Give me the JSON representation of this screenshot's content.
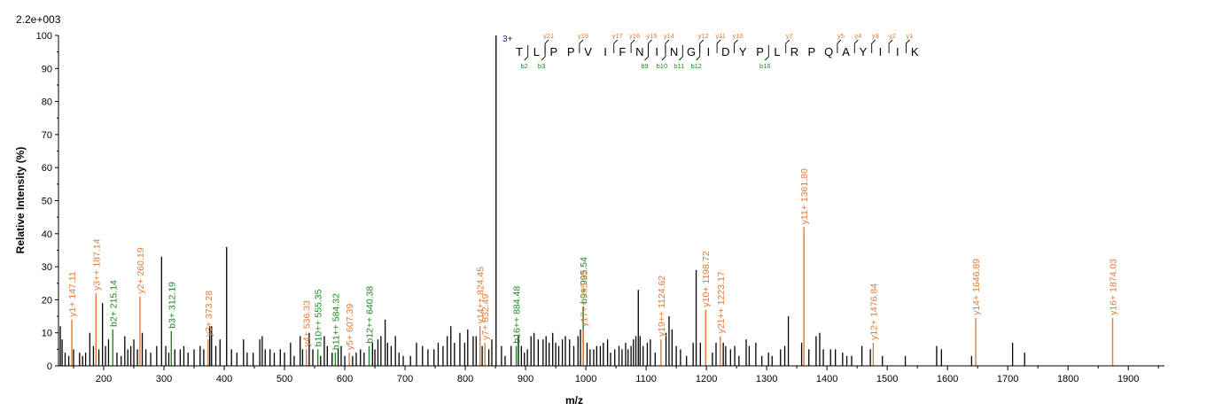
{
  "chart_data": {
    "type": "bar",
    "scale_label": "2.2e+003",
    "xlabel": "m/z",
    "ylabel": "Relative   Intensity (%)",
    "xlim": [
      125,
      1960
    ],
    "ylim": [
      0,
      100
    ],
    "x_ticks": [
      200,
      300,
      400,
      500,
      600,
      700,
      800,
      900,
      1000,
      1100,
      1200,
      1300,
      1400,
      1500,
      1600,
      1700,
      1800,
      1900
    ],
    "y_ticks": [
      0,
      10,
      20,
      30,
      40,
      50,
      60,
      70,
      80,
      90,
      100
    ],
    "charge_label": "3+",
    "colors": {
      "y_ion": "#e07a3a",
      "b_ion": "#1e8a1e",
      "peak": "#000000",
      "charge": "#1a1aa0"
    },
    "sequence": [
      "T",
      "L",
      "P",
      "P",
      "V",
      "I",
      "F",
      "N",
      "I",
      "N",
      "G",
      "I",
      "D",
      "Y",
      "P",
      "L",
      "R",
      "P",
      "Q",
      "A",
      "Y",
      "I",
      "I",
      "K"
    ],
    "seq_y_marks": [
      {
        "after": 2,
        "label": "y21"
      },
      {
        "after": 4,
        "label": "y19"
      },
      {
        "after": 6,
        "label": "y17"
      },
      {
        "after": 7,
        "label": "y16"
      },
      {
        "after": 8,
        "label": "y15"
      },
      {
        "after": 9,
        "label": "y14"
      },
      {
        "after": 11,
        "label": "y12"
      },
      {
        "after": 12,
        "label": "y11"
      },
      {
        "after": 13,
        "label": "y10"
      },
      {
        "after": 16,
        "label": "y7"
      },
      {
        "after": 19,
        "label": "y5"
      },
      {
        "after": 20,
        "label": "y4"
      },
      {
        "after": 21,
        "label": "y3"
      },
      {
        "after": 22,
        "label": "y2"
      },
      {
        "after": 23,
        "label": "y1"
      }
    ],
    "seq_b_marks": [
      {
        "after": 1,
        "label": "b2"
      },
      {
        "after": 2,
        "label": "b3"
      },
      {
        "after": 8,
        "label": "b9"
      },
      {
        "after": 9,
        "label": "b10"
      },
      {
        "after": 10,
        "label": "b11"
      },
      {
        "after": 11,
        "label": "b12"
      },
      {
        "after": 15,
        "label": "b16"
      }
    ],
    "annotated_peaks": [
      {
        "mz": 147.11,
        "intensity": 14,
        "label": "y1+ 147.11",
        "ion": "y"
      },
      {
        "mz": 187.14,
        "intensity": 22,
        "label": "y3++ 187.14",
        "ion": "y"
      },
      {
        "mz": 215.14,
        "intensity": 11,
        "label": "b2+ 215.14",
        "ion": "b"
      },
      {
        "mz": 260.19,
        "intensity": 21,
        "label": "y2+ 260.19",
        "ion": "y"
      },
      {
        "mz": 312.19,
        "intensity": 10.5,
        "label": "b3+ 312.19",
        "ion": "b"
      },
      {
        "mz": 373.28,
        "intensity": 8,
        "label": "y3+ 373.28",
        "ion": "y"
      },
      {
        "mz": 536.33,
        "intensity": 5,
        "label": "y4+ 536.33",
        "ion": "y"
      },
      {
        "mz": 555.35,
        "intensity": 5,
        "label": "b10++ 555.35",
        "ion": "b"
      },
      {
        "mz": 584.32,
        "intensity": 4,
        "label": "b11++ 584.32",
        "ion": "b"
      },
      {
        "mz": 607.39,
        "intensity": 4,
        "label": "y5+ 607.39",
        "ion": "y"
      },
      {
        "mz": 640.38,
        "intensity": 6,
        "label": "b12++ 640.38",
        "ion": "b"
      },
      {
        "mz": 824.45,
        "intensity": 12,
        "label": "y14++ 824.45",
        "ion": "y"
      },
      {
        "mz": 832.49,
        "intensity": 7,
        "label": "y7+ 832.49",
        "ion": "y"
      },
      {
        "mz": 884.48,
        "intensity": 6,
        "label": "b16++ 884.48",
        "ion": "b"
      },
      {
        "mz": 995.54,
        "intensity": 18,
        "label": "b9+ 995.54",
        "ion": "b"
      },
      {
        "mz": 995.83,
        "intensity": 11,
        "label": "y17++ 995.83",
        "ion": "y"
      },
      {
        "mz": 1124.62,
        "intensity": 8,
        "label": "y19++ 1124.62",
        "ion": "y"
      },
      {
        "mz": 1198.72,
        "intensity": 17,
        "label": "y10+ 1198.72",
        "ion": "y"
      },
      {
        "mz": 1223.17,
        "intensity": 9,
        "label": "y21++ 1223.17",
        "ion": "y"
      },
      {
        "mz": 1361.8,
        "intensity": 42,
        "label": "y11+ 1361.80",
        "ion": "y"
      },
      {
        "mz": 1476.84,
        "intensity": 7,
        "label": "y12+ 1476.84",
        "ion": "y"
      },
      {
        "mz": 1646.89,
        "intensity": 14.5,
        "label": "y14+ 1646.89",
        "ion": "y"
      },
      {
        "mz": 1874.03,
        "intensity": 14.5,
        "label": "y16+ 1874.03",
        "ion": "y"
      }
    ],
    "peaks": [
      [
        128,
        12
      ],
      [
        131,
        8
      ],
      [
        136,
        4
      ],
      [
        142,
        3
      ],
      [
        150,
        5
      ],
      [
        160,
        4
      ],
      [
        165,
        3
      ],
      [
        170,
        4
      ],
      [
        177,
        10
      ],
      [
        183,
        6
      ],
      [
        192,
        5
      ],
      [
        198,
        19
      ],
      [
        203,
        6
      ],
      [
        208,
        8
      ],
      [
        222,
        4
      ],
      [
        229,
        3
      ],
      [
        235,
        9
      ],
      [
        240,
        5
      ],
      [
        245,
        6
      ],
      [
        250,
        8
      ],
      [
        256,
        5
      ],
      [
        264,
        10
      ],
      [
        270,
        5
      ],
      [
        278,
        4
      ],
      [
        288,
        6
      ],
      [
        296,
        33
      ],
      [
        303,
        6
      ],
      [
        308,
        4
      ],
      [
        318,
        5
      ],
      [
        327,
        5
      ],
      [
        333,
        6
      ],
      [
        340,
        4
      ],
      [
        350,
        5
      ],
      [
        360,
        6
      ],
      [
        366,
        5
      ],
      [
        376,
        12
      ],
      [
        379,
        12
      ],
      [
        386,
        6
      ],
      [
        393,
        8
      ],
      [
        404,
        36
      ],
      [
        412,
        5
      ],
      [
        421,
        4
      ],
      [
        432,
        8
      ],
      [
        438,
        4
      ],
      [
        448,
        4
      ],
      [
        459,
        8
      ],
      [
        463,
        9
      ],
      [
        468,
        5
      ],
      [
        476,
        5
      ],
      [
        483,
        4
      ],
      [
        493,
        5
      ],
      [
        500,
        4
      ],
      [
        510,
        7
      ],
      [
        516,
        3
      ],
      [
        526,
        9
      ],
      [
        530,
        5
      ],
      [
        541,
        10
      ],
      [
        547,
        5
      ],
      [
        560,
        3
      ],
      [
        566,
        9
      ],
      [
        571,
        6
      ],
      [
        579,
        4
      ],
      [
        589,
        5
      ],
      [
        594,
        6
      ],
      [
        600,
        3
      ],
      [
        613,
        3
      ],
      [
        619,
        4
      ],
      [
        626,
        5
      ],
      [
        632,
        4
      ],
      [
        646,
        7
      ],
      [
        650,
        5
      ],
      [
        655,
        8
      ],
      [
        660,
        9
      ],
      [
        667,
        14
      ],
      [
        671,
        7
      ],
      [
        677,
        6
      ],
      [
        684,
        9
      ],
      [
        690,
        4
      ],
      [
        697,
        3
      ],
      [
        709,
        3
      ],
      [
        719,
        7
      ],
      [
        729,
        6
      ],
      [
        738,
        5
      ],
      [
        748,
        5
      ],
      [
        755,
        7
      ],
      [
        763,
        6
      ],
      [
        770,
        9
      ],
      [
        776,
        12
      ],
      [
        782,
        7
      ],
      [
        791,
        10
      ],
      [
        799,
        7
      ],
      [
        804,
        11
      ],
      [
        813,
        9
      ],
      [
        818,
        9
      ],
      [
        828,
        6
      ],
      [
        839,
        5
      ],
      [
        844,
        8
      ],
      [
        851,
        100
      ],
      [
        860,
        6
      ],
      [
        866,
        3
      ],
      [
        876,
        6
      ],
      [
        888,
        9
      ],
      [
        893,
        6
      ],
      [
        898,
        4
      ],
      [
        903,
        5
      ],
      [
        909,
        9
      ],
      [
        914,
        10
      ],
      [
        921,
        8
      ],
      [
        929,
        8
      ],
      [
        934,
        9
      ],
      [
        939,
        7
      ],
      [
        945,
        10
      ],
      [
        950,
        7
      ],
      [
        955,
        6
      ],
      [
        961,
        8
      ],
      [
        966,
        9
      ],
      [
        973,
        8
      ],
      [
        980,
        6
      ],
      [
        987,
        9
      ],
      [
        991,
        11
      ],
      [
        1002,
        7
      ],
      [
        1007,
        5
      ],
      [
        1013,
        5
      ],
      [
        1018,
        6
      ],
      [
        1024,
        6
      ],
      [
        1029,
        7
      ],
      [
        1036,
        8
      ],
      [
        1041,
        4
      ],
      [
        1048,
        5
      ],
      [
        1055,
        6
      ],
      [
        1060,
        5
      ],
      [
        1066,
        7
      ],
      [
        1070,
        5
      ],
      [
        1075,
        6
      ],
      [
        1079,
        8
      ],
      [
        1083,
        9
      ],
      [
        1087,
        23
      ],
      [
        1090,
        9
      ],
      [
        1095,
        6
      ],
      [
        1102,
        7
      ],
      [
        1107,
        8
      ],
      [
        1115,
        4
      ],
      [
        1133,
        10
      ],
      [
        1138,
        15
      ],
      [
        1143,
        11
      ],
      [
        1150,
        6
      ],
      [
        1157,
        5
      ],
      [
        1167,
        3
      ],
      [
        1178,
        7
      ],
      [
        1183,
        29
      ],
      [
        1190,
        7
      ],
      [
        1210,
        4
      ],
      [
        1216,
        7
      ],
      [
        1228,
        7
      ],
      [
        1232,
        6
      ],
      [
        1240,
        5
      ],
      [
        1247,
        6
      ],
      [
        1254,
        3
      ],
      [
        1266,
        8
      ],
      [
        1271,
        6
      ],
      [
        1282,
        7
      ],
      [
        1292,
        3
      ],
      [
        1303,
        4
      ],
      [
        1309,
        3
      ],
      [
        1323,
        5
      ],
      [
        1330,
        6
      ],
      [
        1336,
        15
      ],
      [
        1358,
        7
      ],
      [
        1370,
        5
      ],
      [
        1382,
        9
      ],
      [
        1388,
        10
      ],
      [
        1394,
        5
      ],
      [
        1406,
        5
      ],
      [
        1414,
        5
      ],
      [
        1426,
        4
      ],
      [
        1433,
        3
      ],
      [
        1441,
        3
      ],
      [
        1458,
        6
      ],
      [
        1472,
        5
      ],
      [
        1492,
        3
      ],
      [
        1530,
        3
      ],
      [
        1582,
        6
      ],
      [
        1590,
        5
      ],
      [
        1640,
        3
      ],
      [
        1708,
        7
      ],
      [
        1728,
        4
      ]
    ]
  }
}
